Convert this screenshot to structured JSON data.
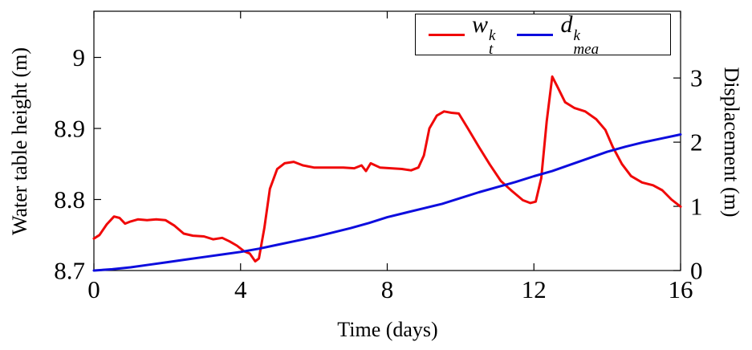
{
  "figure": {
    "background": "#ffffff"
  },
  "chart_data": {
    "type": "line",
    "title": "",
    "xlabel": "Time (days)",
    "ylabel_left": "Water table height (m)",
    "ylabel_right": "Displacement (m)",
    "xlim": [
      0,
      16
    ],
    "ylim_left": [
      8.7,
      9.065
    ],
    "ylim_right": [
      0,
      4.04
    ],
    "xticks": [
      0,
      4,
      8,
      12,
      16
    ],
    "xtick_labels": [
      "0",
      "4",
      "8",
      "12",
      "16"
    ],
    "yticks_left": [
      8.7,
      8.8,
      8.9,
      9.0
    ],
    "ytick_left_labels": [
      "8.7",
      "8.8",
      "8.9",
      "9"
    ],
    "yticks_right": [
      0,
      1,
      2,
      3
    ],
    "ytick_right_labels": [
      "0",
      "1",
      "2",
      "3"
    ],
    "grid": false,
    "legend_position": "top-right-inside",
    "legend": [
      {
        "base": "w",
        "sup": "k",
        "sub": "t",
        "series": "water-table"
      },
      {
        "base": "d",
        "sup": "k",
        "sub": "mea",
        "series": "displacement"
      }
    ],
    "series": [
      {
        "id": "water-table",
        "name": "w_t^k",
        "axis": "left",
        "color": "#f00808",
        "x": [
          0,
          0.15,
          0.35,
          0.55,
          0.7,
          0.85,
          1.0,
          1.2,
          1.45,
          1.7,
          1.95,
          2.2,
          2.45,
          2.7,
          3.0,
          3.25,
          3.5,
          3.7,
          3.9,
          4.1,
          4.25,
          4.4,
          4.5,
          4.65,
          4.8,
          5.0,
          5.2,
          5.45,
          5.7,
          6.0,
          6.4,
          6.8,
          7.1,
          7.3,
          7.42,
          7.55,
          7.8,
          8.1,
          8.4,
          8.65,
          8.85,
          9.0,
          9.15,
          9.35,
          9.55,
          9.75,
          9.95,
          10.2,
          10.5,
          10.8,
          11.1,
          11.4,
          11.7,
          11.9,
          12.05,
          12.2,
          12.35,
          12.5,
          12.65,
          12.85,
          13.1,
          13.4,
          13.7,
          13.95,
          14.15,
          14.4,
          14.65,
          14.95,
          15.25,
          15.5,
          15.75,
          16
        ],
        "y": [
          8.745,
          8.75,
          8.765,
          8.776,
          8.774,
          8.766,
          8.769,
          8.772,
          8.771,
          8.772,
          8.771,
          8.763,
          8.752,
          8.749,
          8.748,
          8.744,
          8.746,
          8.741,
          8.735,
          8.727,
          8.724,
          8.713,
          8.717,
          8.76,
          8.815,
          8.843,
          8.851,
          8.853,
          8.848,
          8.845,
          8.845,
          8.845,
          8.844,
          8.848,
          8.84,
          8.851,
          8.845,
          8.844,
          8.843,
          8.841,
          8.845,
          8.862,
          8.9,
          8.918,
          8.924,
          8.922,
          8.921,
          8.9,
          8.874,
          8.849,
          8.826,
          8.812,
          8.799,
          8.795,
          8.797,
          8.83,
          8.91,
          8.973,
          8.958,
          8.937,
          8.929,
          8.924,
          8.913,
          8.898,
          8.874,
          8.85,
          8.833,
          8.824,
          8.82,
          8.813,
          8.8,
          8.79
        ]
      },
      {
        "id": "displacement",
        "name": "d_mea^k",
        "axis": "right",
        "color": "#0d0dde",
        "x": [
          0,
          0.5,
          1,
          1.5,
          2,
          2.5,
          3,
          3.5,
          4,
          4.5,
          5,
          5.5,
          6,
          6.5,
          7,
          7.5,
          8,
          8.5,
          9,
          9.5,
          10,
          10.5,
          11,
          11.5,
          12,
          12.5,
          13,
          13.5,
          14,
          14.5,
          15,
          15.5,
          16
        ],
        "y": [
          0,
          0.02,
          0.05,
          0.09,
          0.13,
          0.17,
          0.21,
          0.25,
          0.29,
          0.34,
          0.4,
          0.46,
          0.52,
          0.59,
          0.66,
          0.74,
          0.83,
          0.9,
          0.97,
          1.04,
          1.13,
          1.22,
          1.3,
          1.38,
          1.47,
          1.55,
          1.65,
          1.75,
          1.85,
          1.93,
          2.0,
          2.06,
          2.12
        ]
      }
    ]
  }
}
